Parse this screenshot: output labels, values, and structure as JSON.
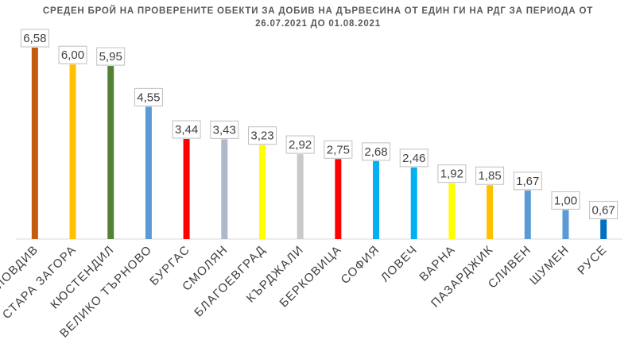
{
  "chart_data": {
    "type": "bar",
    "title_line1": "СРЕДЕН БРОЙ НА ПРОВЕРЕНИТЕ ОБЕКТИ ЗА ДОБИВ НА ДЪРВЕСИНА ОТ ЕДИН ГИ НА РДГ ЗА ПЕРИОДА ОТ",
    "title_line2": "26.07.2021 ДО 01.08.2021",
    "categories": [
      "ПЛОВДИВ",
      "СТАРА ЗАГОРА",
      "КЮСТЕНДИЛ",
      "ВЕЛИКО ТЪРНОВО",
      "БУРГАС",
      "СМОЛЯН",
      "БЛАГОЕВГРАД",
      "КЪРДЖАЛИ",
      "БЕРКОВИЦА",
      "СОФИЯ",
      "ЛОВЕЧ",
      "ВАРНА",
      "ПАЗАРДЖИК",
      "СЛИВЕН",
      "ШУМЕН",
      "РУСЕ"
    ],
    "values": [
      6.58,
      6.0,
      5.95,
      4.55,
      3.44,
      3.43,
      3.23,
      2.92,
      2.75,
      2.68,
      2.46,
      1.92,
      1.85,
      1.67,
      1.0,
      0.67
    ],
    "value_labels": [
      "6,58",
      "6,00",
      "5,95",
      "4,55",
      "3,44",
      "3,43",
      "3,23",
      "2,92",
      "2,75",
      "2,68",
      "2,46",
      "1,92",
      "1,85",
      "1,67",
      "1,00",
      "0,67"
    ],
    "colors": [
      "#C55A11",
      "#FFC000",
      "#548235",
      "#5B9BD5",
      "#FF0000",
      "#ADB9CA",
      "#FFFF00",
      "#C9C9C9",
      "#FF0000",
      "#00B0F0",
      "#00B0F0",
      "#FFFF00",
      "#FFC000",
      "#5B9BD5",
      "#5B9BD5",
      "#0070C0"
    ],
    "ylim": [
      0,
      6.58
    ],
    "grid": false,
    "legend": "none",
    "data_labels": true
  }
}
